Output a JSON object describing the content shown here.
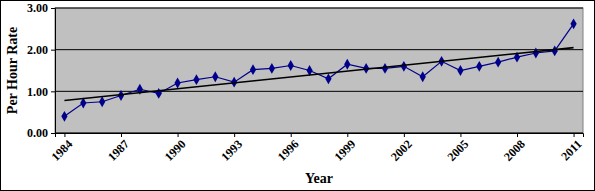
{
  "chart_data": {
    "type": "line",
    "x_label": "Year",
    "y_label": "Per Hour Rate",
    "x": [
      1984,
      1985,
      1986,
      1987,
      1988,
      1989,
      1990,
      1991,
      1992,
      1993,
      1994,
      1995,
      1996,
      1997,
      1998,
      1999,
      2000,
      2001,
      2002,
      2003,
      2004,
      2005,
      2006,
      2007,
      2008,
      2009,
      2010,
      2011
    ],
    "series": [
      {
        "color": "#00008b",
        "marker": "diamond",
        "line_style": "solid",
        "values": [
          0.4,
          0.72,
          0.75,
          0.9,
          1.05,
          0.95,
          1.2,
          1.28,
          1.35,
          1.22,
          1.52,
          1.55,
          1.62,
          1.5,
          1.3,
          1.65,
          1.55,
          1.55,
          1.6,
          1.35,
          1.72,
          1.5,
          1.6,
          1.7,
          1.82,
          1.92,
          1.97,
          2.62
        ]
      },
      {
        "color": "#000000",
        "line_style": "solid",
        "x": [
          1984,
          2011
        ],
        "values": [
          0.78,
          2.05
        ]
      }
    ],
    "xlim": [
      1983.5,
      2011.5
    ],
    "xticks": [
      1984,
      1987,
      1990,
      1993,
      1996,
      1999,
      2002,
      2005,
      2008,
      2011
    ],
    "ylim": [
      0,
      3
    ],
    "yticks": [
      {
        "value": 0,
        "label": "0.00"
      },
      {
        "value": 1,
        "label": "1.00"
      },
      {
        "value": 2,
        "label": "2.00"
      },
      {
        "value": 3,
        "label": "3.00"
      }
    ],
    "grid": true
  }
}
